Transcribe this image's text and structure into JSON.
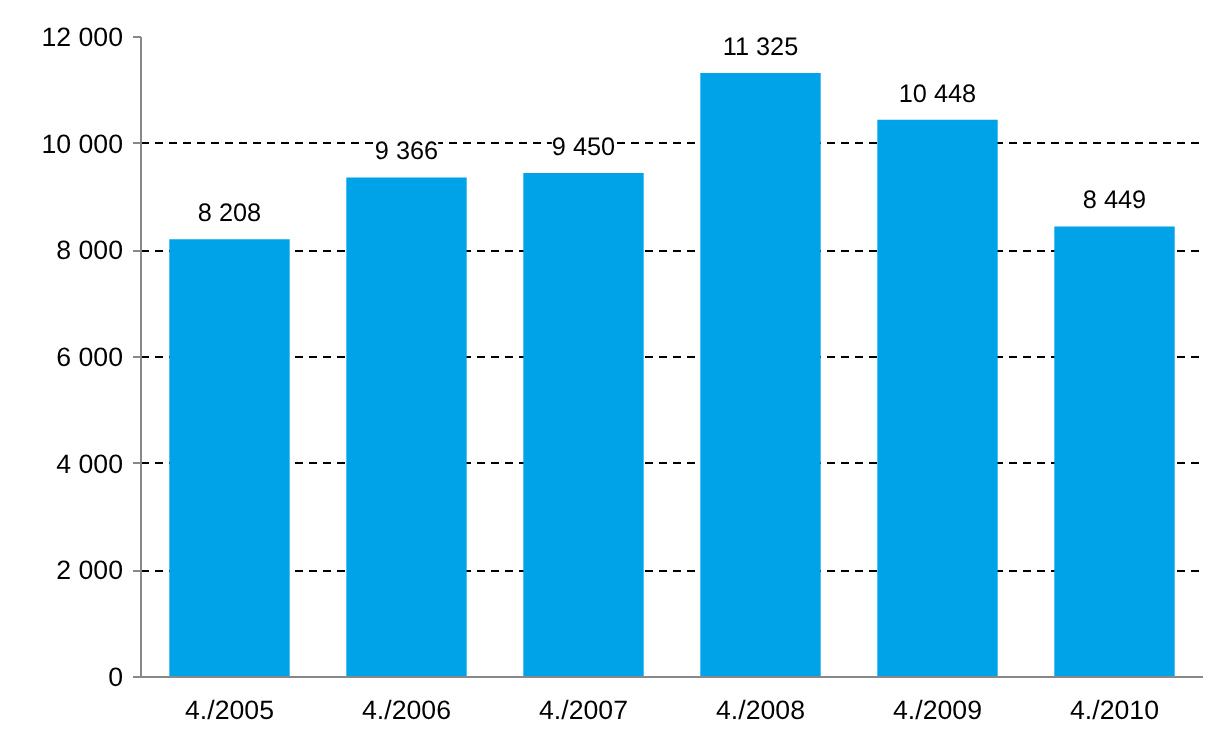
{
  "chart_data": {
    "type": "bar",
    "categories": [
      "4./2005",
      "4./2006",
      "4./2007",
      "4./2008",
      "4./2009",
      "4./2010"
    ],
    "values": [
      8208,
      9366,
      9450,
      11325,
      10448,
      8449
    ],
    "value_labels": [
      "8 208",
      "9 366",
      "9 450",
      "11 325",
      "10 448",
      "8 449"
    ],
    "color": "#00a2e8",
    "ylim": [
      0,
      12000
    ],
    "yticks": [
      0,
      {
        "value": 2000,
        "label": "2 000"
      },
      {
        "value": 4000,
        "label": "4 000"
      },
      {
        "value": 6000,
        "label": "6 000"
      },
      {
        "value": 8000,
        "label": "8 000"
      },
      {
        "value": 10000,
        "label": "10 000"
      },
      {
        "value": 12000,
        "label": "12 000"
      }
    ],
    "grid": "y"
  }
}
